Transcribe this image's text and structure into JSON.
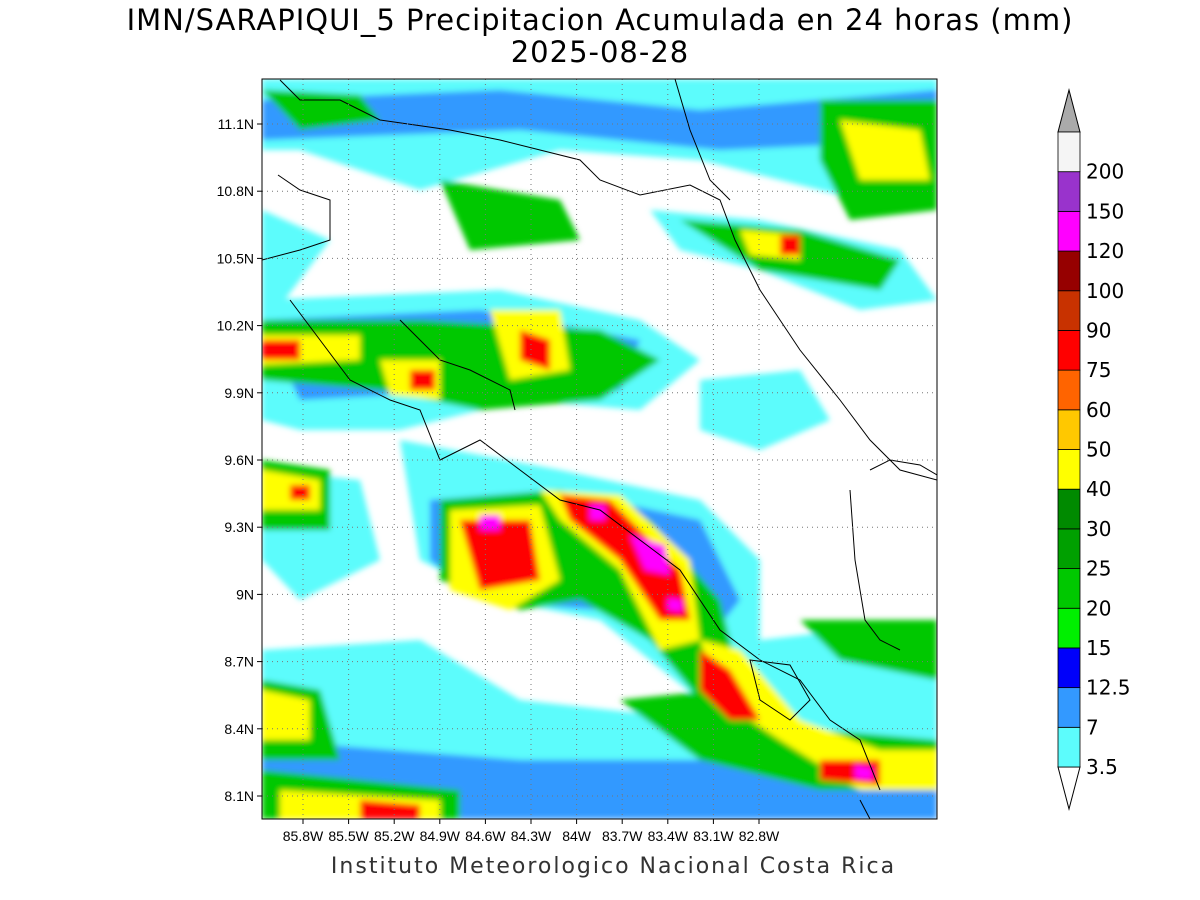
{
  "title": {
    "line1": "IMN/SARAPIQUI_5 Precipitacion Acumulada en 24 horas (mm)",
    "line2": "2025-08-28"
  },
  "footer": "Instituto Meteorologico Nacional Costa Rica",
  "axes": {
    "lat_labels": [
      "11.1N",
      "10.8N",
      "10.5N",
      "10.2N",
      "9.9N",
      "9.6N",
      "9.3N",
      "9N",
      "8.7N",
      "8.4N",
      "8.1N"
    ],
    "lon_labels": [
      "85.8W",
      "85.5W",
      "85.2W",
      "84.9W",
      "84.6W",
      "84.3W",
      "84W",
      "83.7W",
      "83.4W",
      "83.1W",
      "82.8W"
    ]
  },
  "colorbar": {
    "levels": [
      {
        "label": "3.5",
        "color": "#5cfcfc"
      },
      {
        "label": "7",
        "color": "#3399ff"
      },
      {
        "label": "12.5",
        "color": "#0000fa"
      },
      {
        "label": "15",
        "color": "#00f000"
      },
      {
        "label": "20",
        "color": "#00c800"
      },
      {
        "label": "25",
        "color": "#00a000"
      },
      {
        "label": "30",
        "color": "#008a00"
      },
      {
        "label": "40",
        "color": "#ffff00"
      },
      {
        "label": "50",
        "color": "#ffc800"
      },
      {
        "label": "60",
        "color": "#ff6400"
      },
      {
        "label": "75",
        "color": "#ff0000"
      },
      {
        "label": "90",
        "color": "#c83200"
      },
      {
        "label": "100",
        "color": "#960000"
      },
      {
        "label": "120",
        "color": "#ff00ff"
      },
      {
        "label": "150",
        "color": "#9933cc"
      },
      {
        "label": "200",
        "color": "#f5f5f5"
      }
    ],
    "over_color": "#aaaaaa",
    "under_color": "#ffffff"
  }
}
